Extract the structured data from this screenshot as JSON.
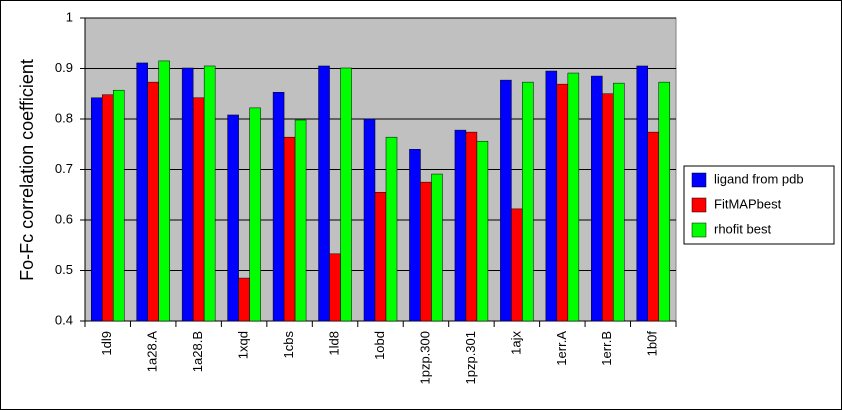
{
  "chart_data": {
    "type": "bar",
    "y_label": "Fo-Fc correlation coefficient",
    "categories": [
      "1dl9",
      "1a28.A",
      "1a28.B",
      "1xqd",
      "1cbs",
      "1ld8",
      "1obd",
      "1pzp.300",
      "1pzp.301",
      "1ajx",
      "1err.A",
      "1err.B",
      "1b0f"
    ],
    "series": [
      {
        "name": "ligand from pdb",
        "color": "#0000ff",
        "values": [
          0.842,
          0.911,
          0.901,
          0.808,
          0.853,
          0.905,
          0.8,
          0.74,
          0.778,
          0.877,
          0.895,
          0.885,
          0.905
        ]
      },
      {
        "name": "FitMAPbest",
        "color": "#ff0000",
        "values": [
          0.848,
          0.873,
          0.842,
          0.485,
          0.764,
          0.533,
          0.655,
          0.675,
          0.774,
          0.622,
          0.869,
          0.85,
          0.774
        ]
      },
      {
        "name": "rhofit best",
        "color": "#00ff00",
        "values": [
          0.857,
          0.915,
          0.905,
          0.822,
          0.798,
          0.901,
          0.764,
          0.691,
          0.756,
          0.873,
          0.891,
          0.871,
          0.873
        ]
      }
    ],
    "ylim": [
      0.4,
      1
    ],
    "yticks": [
      0.4,
      0.5,
      0.6,
      0.7,
      0.8,
      0.9,
      1
    ],
    "grid": true,
    "legend": "right"
  }
}
